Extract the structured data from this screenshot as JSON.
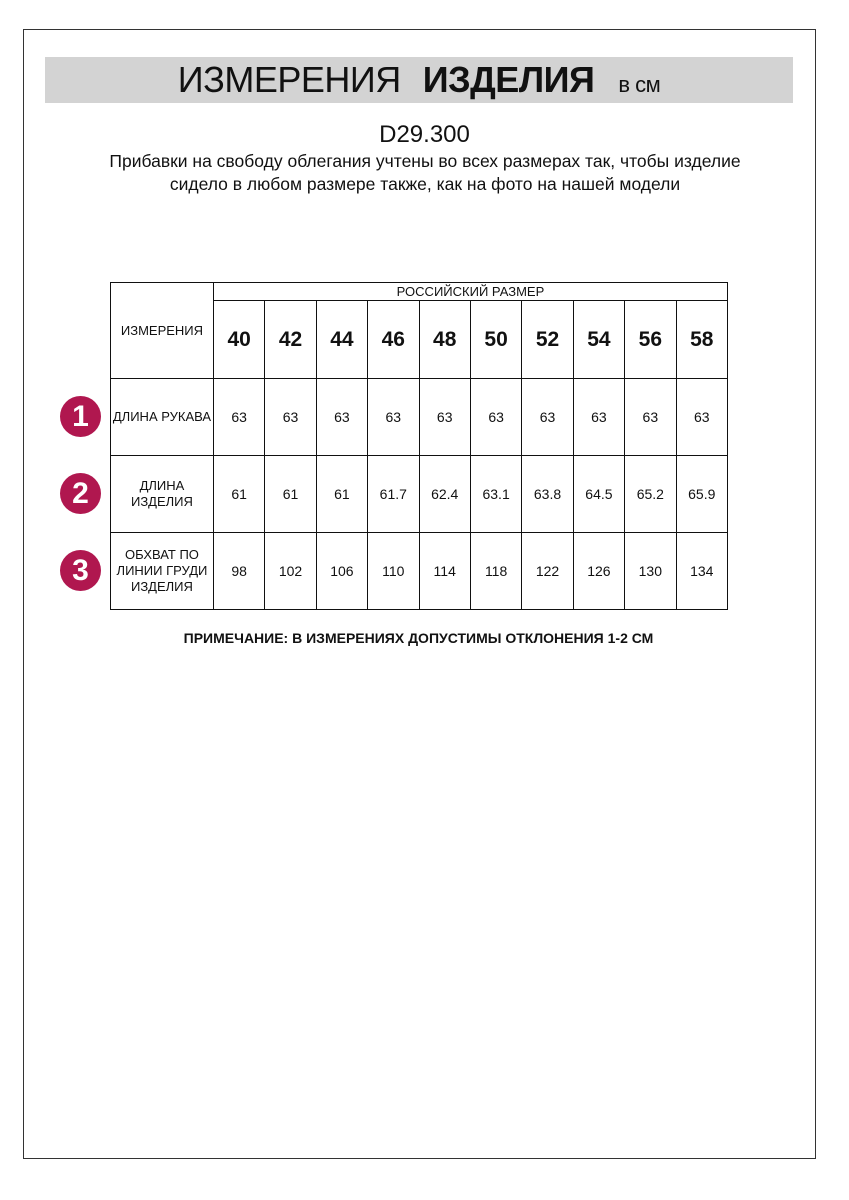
{
  "title": {
    "part1": "ИЗМЕРЕНИЯ",
    "part2": "ИЗДЕЛИЯ",
    "unit": "в см"
  },
  "code": "D29.300",
  "description": "Прибавки на свободу облегания учтены во всех размерах так, чтобы изделие сидело в любом размере также, как на фото на нашей модели",
  "table": {
    "measure_header": "ИЗМЕРЕНИЯ",
    "size_header": "РОССИЙСКИЙ РАЗМЕР",
    "sizes": [
      "40",
      "42",
      "44",
      "46",
      "48",
      "50",
      "52",
      "54",
      "56",
      "58"
    ],
    "rows": [
      {
        "num": "1",
        "label": "ДЛИНА РУКАВА",
        "values": [
          "63",
          "63",
          "63",
          "63",
          "63",
          "63",
          "63",
          "63",
          "63",
          "63"
        ]
      },
      {
        "num": "2",
        "label": "ДЛИНА ИЗДЕЛИЯ",
        "values": [
          "61",
          "61",
          "61",
          "61.7",
          "62.4",
          "63.1",
          "63.8",
          "64.5",
          "65.2",
          "65.9"
        ]
      },
      {
        "num": "3",
        "label": "ОБХВАТ ПО ЛИНИИ ГРУДИ ИЗДЕЛИЯ",
        "values": [
          "98",
          "102",
          "106",
          "110",
          "114",
          "118",
          "122",
          "126",
          "130",
          "134"
        ]
      }
    ]
  },
  "note": "ПРИМЕЧАНИЕ: В ИЗМЕРЕНИЯХ ДОПУСТИМЫ ОТКЛОНЕНИЯ 1-2 СМ",
  "colors": {
    "badge": "#b0174f",
    "banner": "#d3d3d3"
  }
}
